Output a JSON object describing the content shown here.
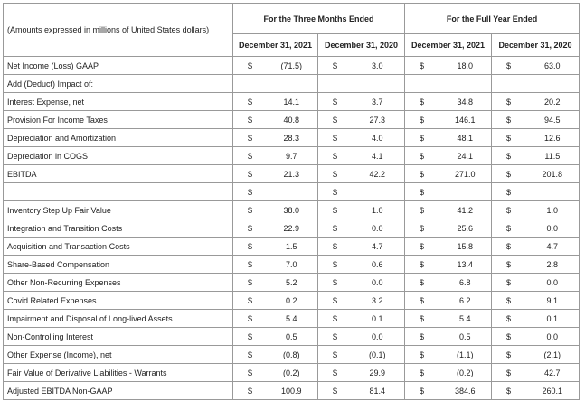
{
  "header": {
    "note": "(Amounts expressed in millions of United States dollars)",
    "groups": [
      "For the Three Months Ended",
      "For the Full Year Ended"
    ],
    "periods": [
      "December 31, 2021",
      "December 31, 2020",
      "December 31, 2021",
      "December 31, 2020"
    ]
  },
  "table": {
    "rows": [
      [
        "Net Income (Loss) GAAP",
        "$",
        "(71.5)",
        "$",
        "3.0",
        "$",
        "18.0",
        "$",
        "63.0"
      ],
      [
        "Add (Deduct) Impact of:"
      ],
      [
        "Interest Expense, net",
        "$",
        "14.1",
        "$",
        "3.7",
        "$",
        "34.8",
        "$",
        "20.2"
      ],
      [
        "Provision For Income Taxes",
        "$",
        "40.8",
        "$",
        "27.3",
        "$",
        "146.1",
        "$",
        "94.5"
      ],
      [
        "Depreciation and Amortization",
        "$",
        "28.3",
        "$",
        "4.0",
        "$",
        "48.1",
        "$",
        "12.6"
      ],
      [
        "Depreciation in COGS",
        "$",
        "9.7",
        "$",
        "4.1",
        "$",
        "24.1",
        "$",
        "11.5"
      ],
      [
        "EBITDA",
        "$",
        "21.3",
        "$",
        "42.2",
        "$",
        "271.0",
        "$",
        "201.8"
      ],
      [
        null,
        "$",
        null,
        "$",
        null,
        "$",
        null,
        "$",
        null
      ],
      [
        "Inventory Step Up Fair Value",
        "$",
        "38.0",
        "$",
        "1.0",
        "$",
        "41.2",
        "$",
        "1.0"
      ],
      [
        "Integration and Transition Costs",
        "$",
        "22.9",
        "$",
        "0.0",
        "$",
        "25.6",
        "$",
        "0.0"
      ],
      [
        "Acquisition and Transaction Costs",
        "$",
        "1.5",
        "$",
        "4.7",
        "$",
        "15.8",
        "$",
        "4.7"
      ],
      [
        "Share-Based Compensation",
        "$",
        "7.0",
        "$",
        "0.6",
        "$",
        "13.4",
        "$",
        "2.8"
      ],
      [
        "Other Non-Recurring Expenses",
        "$",
        "5.2",
        "$",
        "0.0",
        "$",
        "6.8",
        "$",
        "0.0"
      ],
      [
        "Covid Related Expenses",
        "$",
        "0.2",
        "$",
        "3.2",
        "$",
        "6.2",
        "$",
        "9.1"
      ],
      [
        "Impairment and Disposal of Long-lived Assets",
        "$",
        "5.4",
        "$",
        "0.1",
        "$",
        "5.4",
        "$",
        "0.1"
      ],
      [
        "Non-Controlling Interest",
        "$",
        "0.5",
        "$",
        "0.0",
        "$",
        "0.5",
        "$",
        "0.0"
      ],
      [
        "Other Expense (Income), net",
        "$",
        "(0.8)",
        "$",
        "(0.1)",
        "$",
        "(1.1)",
        "$",
        "(2.1)"
      ],
      [
        "Fair Value of Derivative Liabilities - Warrants",
        "$",
        "(0.2)",
        "$",
        "29.9",
        "$",
        "(0.2)",
        "$",
        "42.7"
      ],
      [
        "Adjusted EBITDA Non-GAAP",
        "$",
        "100.9",
        "$",
        "81.4",
        "$",
        "384.6",
        "$",
        "260.1"
      ]
    ]
  }
}
